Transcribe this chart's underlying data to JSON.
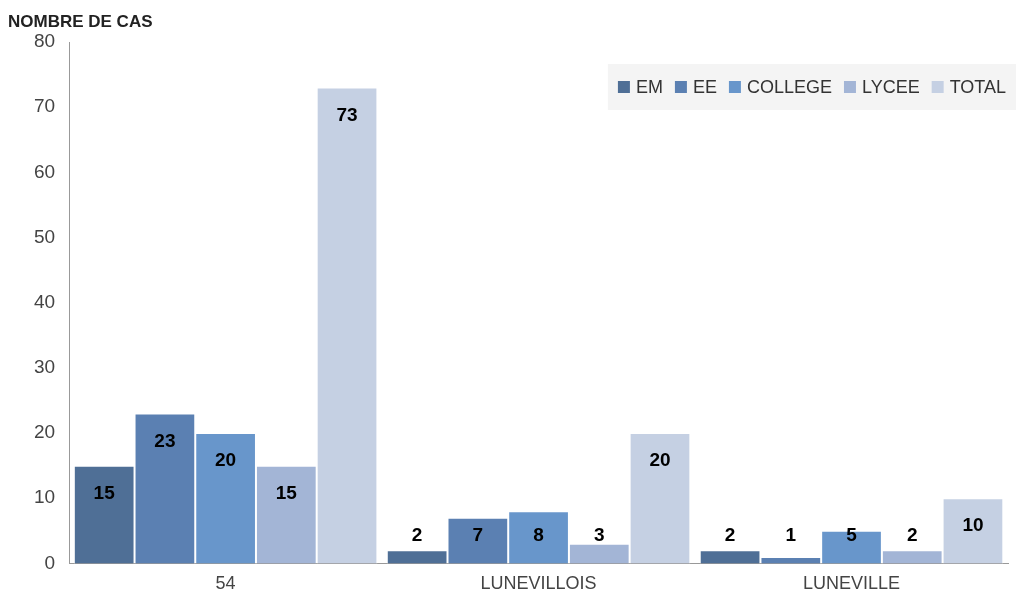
{
  "chart_data": {
    "type": "bar",
    "ylabel": "NOMBRE DE CAS",
    "categories": [
      "54",
      "LUNEVILLOIS",
      "LUNEVILLE"
    ],
    "series": [
      {
        "name": "EM",
        "color": "#4f6f96",
        "values": [
          15,
          2,
          2
        ]
      },
      {
        "name": "EE",
        "color": "#5b80b2",
        "values": [
          23,
          7,
          1
        ]
      },
      {
        "name": "COLLEGE",
        "color": "#6896cb",
        "values": [
          20,
          8,
          5
        ]
      },
      {
        "name": "LYCEE",
        "color": "#a3b5d6",
        "values": [
          15,
          3,
          2
        ]
      },
      {
        "name": "TOTAL",
        "color": "#c5d0e3",
        "values": [
          73,
          20,
          10
        ]
      }
    ],
    "ylim": [
      0,
      80
    ],
    "yticks": [
      0,
      10,
      20,
      30,
      40,
      50,
      60,
      70,
      80
    ],
    "grid": false,
    "legend": "top right",
    "data_labels": true
  }
}
